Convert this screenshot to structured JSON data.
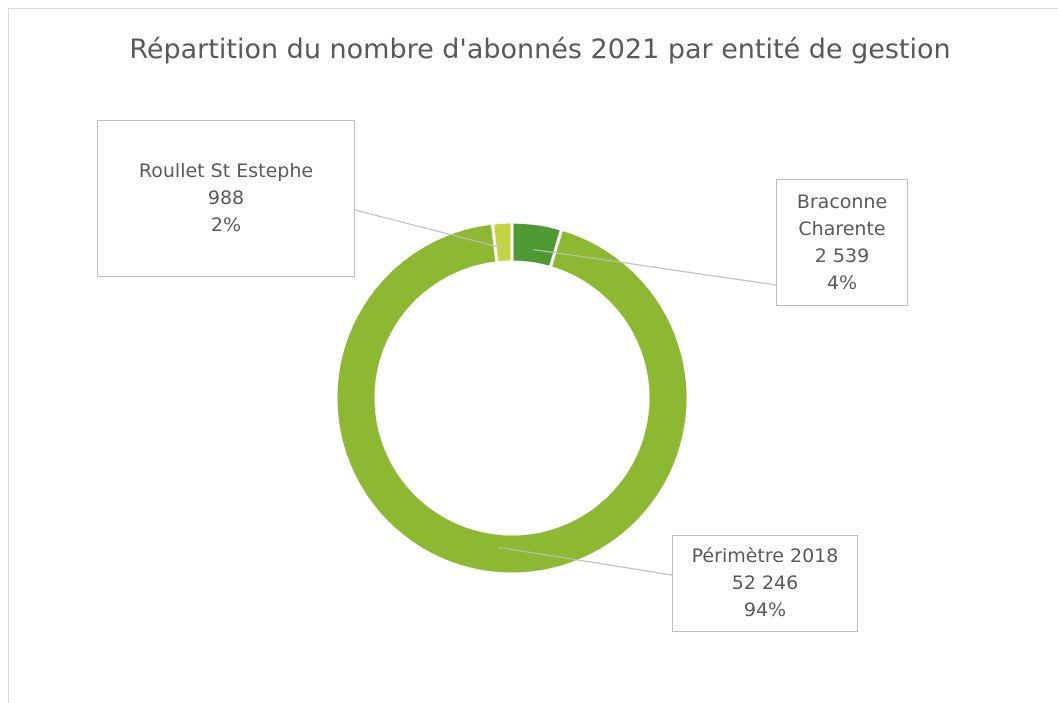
{
  "chart_data": {
    "type": "donut",
    "title": "Répartition du nombre d'abonnés 2021 par entité de gestion",
    "categories": [
      "Braconne Charente",
      "Périmètre 2018",
      "Roullet St Estephe"
    ],
    "values": [
      2539,
      52246,
      988
    ],
    "value_labels": [
      "2 539",
      "52 246",
      "988"
    ],
    "percent_labels": [
      "4%",
      "94%",
      "2%"
    ],
    "colors": [
      "#4e9a32",
      "#8cb832",
      "#c3d443"
    ]
  }
}
